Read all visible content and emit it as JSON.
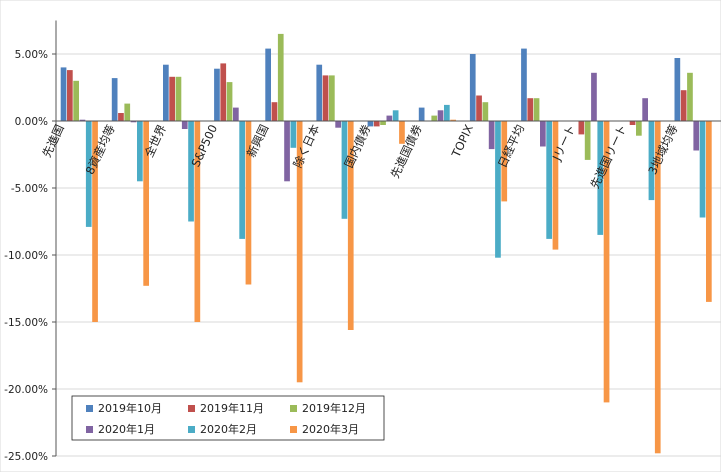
{
  "chart_data": {
    "type": "bar",
    "categories": [
      "先進国",
      "8資産均等",
      "全世界",
      "S&P500",
      "新興国",
      "除く日本",
      "国内債券",
      "先進国債券",
      "TOPIX",
      "日経平均",
      "Jリート",
      "先進国リート",
      "3地域均等"
    ],
    "series": [
      {
        "name": "2019年10月",
        "color": "#4F81BD",
        "values": [
          4.0,
          3.2,
          4.2,
          3.9,
          5.4,
          4.2,
          -0.4,
          1.0,
          5.0,
          5.4,
          0.0,
          0.0,
          4.7
        ]
      },
      {
        "name": "2019年11月",
        "color": "#C0504D",
        "values": [
          3.8,
          0.6,
          3.3,
          4.3,
          1.4,
          3.4,
          -0.4,
          0.0,
          1.9,
          1.7,
          -1.0,
          -0.3,
          2.3
        ]
      },
      {
        "name": "2019年12月",
        "color": "#9BBB59",
        "values": [
          3.0,
          1.3,
          3.3,
          2.9,
          6.5,
          3.4,
          -0.3,
          0.4,
          1.4,
          1.7,
          -2.9,
          -1.1,
          3.6
        ]
      },
      {
        "name": "2020年1月",
        "color": "#8064A2",
        "values": [
          0.1,
          -0.1,
          -0.6,
          1.0,
          -4.5,
          -0.5,
          0.4,
          0.8,
          -2.1,
          -1.9,
          3.6,
          1.7,
          -2.2
        ]
      },
      {
        "name": "2020年2月",
        "color": "#4BACC6",
        "values": [
          -7.9,
          -4.5,
          -7.5,
          -8.8,
          -2.0,
          -7.3,
          0.8,
          1.2,
          -10.2,
          -8.8,
          -8.5,
          -5.9,
          -7.2
        ]
      },
      {
        "name": "2020年3月",
        "color": "#F79646",
        "values": [
          -15.0,
          -12.3,
          -15.0,
          -12.2,
          -19.5,
          -15.6,
          -1.7,
          0.1,
          -6.0,
          -9.6,
          -21.0,
          -24.8,
          -13.5
        ]
      }
    ],
    "yticks": [
      "5.00%",
      "0.00%",
      "-5.00%",
      "-10.00%",
      "-15.00%",
      "-20.00%",
      "-25.00%"
    ],
    "ylim": [
      -25,
      7.5
    ],
    "grid": true,
    "legend": "bottom-left",
    "title": "",
    "xlabel": "",
    "ylabel": ""
  }
}
